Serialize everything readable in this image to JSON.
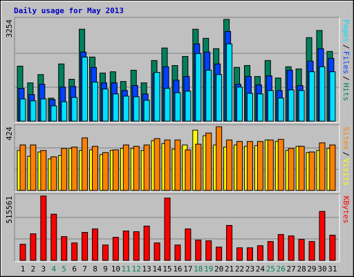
{
  "chart_data": [
    {
      "type": "bar",
      "title": "Daily usage for May 2013",
      "ylim": [
        0,
        3254
      ],
      "yticks": [
        3254
      ],
      "legend_separator": "/",
      "series": [
        {
          "name": "Pages",
          "color": "#00e0ff",
          "values": [
            710,
            650,
            710,
            490,
            620,
            760,
            2050,
            1250,
            1030,
            870,
            800,
            780,
            670,
            1560,
            1050,
            910,
            960,
            2160,
            1630,
            1490,
            2470,
            1090,
            890,
            870,
            980,
            740,
            1000,
            980,
            1580,
            1740,
            1580
          ]
        },
        {
          "name": "Files",
          "color": "#0040ff",
          "values": [
            1050,
            850,
            1180,
            690,
            1090,
            1110,
            2210,
            1720,
            1225,
            1225,
            980,
            1140,
            870,
            1520,
            1740,
            1310,
            1430,
            2470,
            2210,
            1830,
            2870,
            1180,
            1430,
            1160,
            1450,
            980,
            1630,
            1140,
            1920,
            2320,
            2010
          ]
        },
        {
          "name": "Hits",
          "color": "#00805c",
          "values": [
            1760,
            1225,
            1490,
            735,
            1830,
            1340,
            2940,
            2050,
            1540,
            1580,
            1270,
            1630,
            1225,
            1940,
            2340,
            1780,
            2070,
            2940,
            2650,
            2320,
            3254,
            1720,
            1780,
            1430,
            1940,
            1380,
            1740,
            1670,
            2670,
            2900,
            2230
          ]
        }
      ]
    },
    {
      "type": "bar",
      "ylim": [
        0,
        424
      ],
      "yticks": [
        424
      ],
      "legend_separator": "/",
      "series": [
        {
          "name": "Sites",
          "color": "#ff8000",
          "values": [
            303,
            303,
            266,
            224,
            280,
            289,
            350,
            294,
            252,
            270,
            303,
            294,
            303,
            345,
            336,
            336,
            270,
            308,
            382,
            424,
            336,
            326,
            326,
            326,
            336,
            340,
            280,
            294,
            256,
            317,
            303
          ]
        },
        {
          "name": "Visits",
          "color": "#ffff00",
          "values": [
            266,
            228,
            256,
            210,
            233,
            280,
            266,
            270,
            238,
            266,
            280,
            280,
            266,
            331,
            312,
            275,
            303,
            401,
            364,
            303,
            289,
            303,
            294,
            298,
            336,
            326,
            266,
            294,
            252,
            266,
            280
          ]
        }
      ]
    },
    {
      "type": "bar",
      "ylim": [
        0,
        515561
      ],
      "yticks": [
        515561
      ],
      "categories": [
        "1",
        "2",
        "3",
        "4",
        "5",
        "6",
        "7",
        "8",
        "9",
        "10",
        "11",
        "12",
        "13",
        "14",
        "15",
        "16",
        "17",
        "18",
        "19",
        "20",
        "21",
        "22",
        "23",
        "24",
        "25",
        "26",
        "27",
        "28",
        "29",
        "30",
        "31"
      ],
      "category_colors": [
        "#000000",
        "#000000",
        "#000000",
        "#00805c",
        "#00805c",
        "#000000",
        "#000000",
        "#000000",
        "#000000",
        "#000000",
        "#00805c",
        "#00805c",
        "#000000",
        "#000000",
        "#000000",
        "#000000",
        "#000000",
        "#00805c",
        "#00805c",
        "#000000",
        "#000000",
        "#000000",
        "#000000",
        "#000000",
        "#00805c",
        "#00805c",
        "#000000",
        "#000000",
        "#000000",
        "#000000",
        "#000000"
      ],
      "series": [
        {
          "name": "KBytes",
          "color": "#ff0000",
          "values": [
            128900,
            213000,
            515561,
            370000,
            190500,
            140100,
            224200,
            252200,
            123300,
            184900,
            235400,
            229800,
            274600,
            140100,
            498800,
            123300,
            252200,
            162500,
            156900,
            106500,
            280200,
            100900,
            100900,
            117700,
            151300,
            207400,
            196200,
            168100,
            151300,
            392300,
            201800
          ]
        }
      ]
    }
  ]
}
